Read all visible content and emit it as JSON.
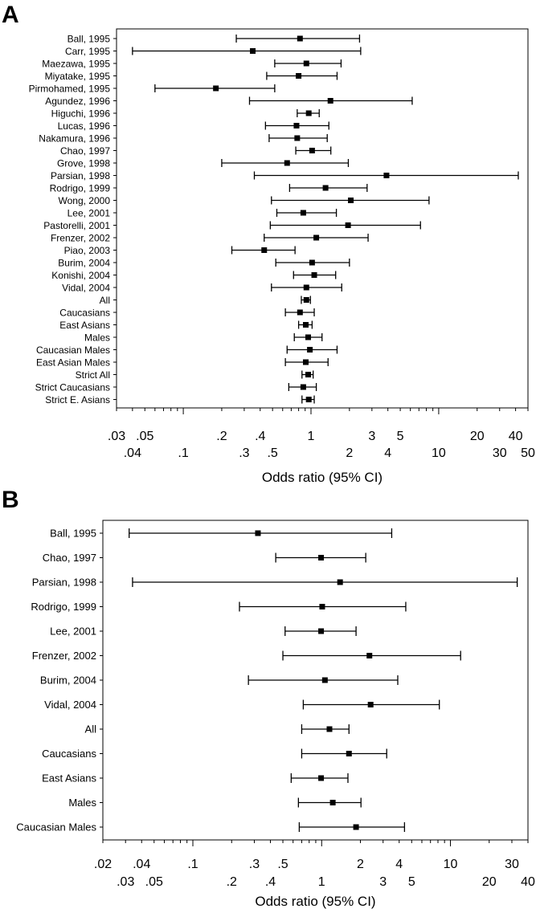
{
  "chart_data": [
    {
      "type": "forest",
      "panel_label": "A",
      "xlabel": "Odds ratio (95% CI)",
      "xscale": "log",
      "xlim": [
        0.03,
        50
      ],
      "grid": false,
      "ticks_top_row": [
        ".03",
        ".05",
        ".2",
        ".4",
        "1",
        "3",
        "5",
        "20",
        "40"
      ],
      "tick_values_top_row": [
        0.03,
        0.05,
        0.2,
        0.4,
        1,
        3,
        5,
        20,
        40
      ],
      "ticks_bottom_row": [
        ".04",
        ".1",
        ".3",
        ".5",
        "2",
        "4",
        "10",
        "30",
        "50"
      ],
      "tick_values_bottom_row": [
        0.04,
        0.1,
        0.3,
        0.5,
        2,
        4,
        10,
        30,
        50
      ],
      "rows": [
        {
          "label": "Ball, 1995",
          "or": 0.82,
          "lo": 0.26,
          "hi": 2.4
        },
        {
          "label": "Carr, 1995",
          "or": 0.35,
          "lo": 0.04,
          "hi": 2.45
        },
        {
          "label": "Maezawa, 1995",
          "or": 0.92,
          "lo": 0.52,
          "hi": 1.72
        },
        {
          "label": "Miyatake, 1995",
          "or": 0.8,
          "lo": 0.45,
          "hi": 1.6
        },
        {
          "label": "Pirmohamed, 1995",
          "or": 0.18,
          "lo": 0.06,
          "hi": 0.52
        },
        {
          "label": "Agundez, 1996",
          "or": 1.42,
          "lo": 0.33,
          "hi": 6.2
        },
        {
          "label": "Higuchi, 1996",
          "or": 0.96,
          "lo": 0.78,
          "hi": 1.16
        },
        {
          "label": "Lucas, 1996",
          "or": 0.77,
          "lo": 0.44,
          "hi": 1.38
        },
        {
          "label": "Nakamura, 1996",
          "or": 0.78,
          "lo": 0.47,
          "hi": 1.34
        },
        {
          "label": "Chao, 1997",
          "or": 1.02,
          "lo": 0.76,
          "hi": 1.43
        },
        {
          "label": "Grove, 1998",
          "or": 0.65,
          "lo": 0.2,
          "hi": 1.96
        },
        {
          "label": "Parsian, 1998",
          "or": 3.9,
          "lo": 0.36,
          "hi": 42
        },
        {
          "label": "Rodrigo, 1999",
          "or": 1.3,
          "lo": 0.68,
          "hi": 2.75
        },
        {
          "label": "Wong, 2000",
          "or": 2.05,
          "lo": 0.49,
          "hi": 8.4
        },
        {
          "label": "Lee, 2001",
          "or": 0.87,
          "lo": 0.54,
          "hi": 1.58
        },
        {
          "label": "Pastorelli, 2001",
          "or": 1.95,
          "lo": 0.48,
          "hi": 7.2
        },
        {
          "label": "Frenzer, 2002",
          "or": 1.1,
          "lo": 0.43,
          "hi": 2.8
        },
        {
          "label": "Piao, 2003",
          "or": 0.43,
          "lo": 0.24,
          "hi": 0.75
        },
        {
          "label": "Burim, 2004",
          "or": 1.02,
          "lo": 0.53,
          "hi": 2.0
        },
        {
          "label": "Konishi, 2004",
          "or": 1.06,
          "lo": 0.73,
          "hi": 1.56
        },
        {
          "label": "Vidal, 2004",
          "or": 0.92,
          "lo": 0.49,
          "hi": 1.74
        },
        {
          "label": "All",
          "or": 0.92,
          "lo": 0.84,
          "hi": 0.99
        },
        {
          "label": "Caucasians",
          "or": 0.82,
          "lo": 0.63,
          "hi": 1.06
        },
        {
          "label": "East Asians",
          "or": 0.91,
          "lo": 0.8,
          "hi": 1.02
        },
        {
          "label": "Males",
          "or": 0.95,
          "lo": 0.74,
          "hi": 1.22
        },
        {
          "label": "Caucasian Males",
          "or": 0.98,
          "lo": 0.65,
          "hi": 1.6
        },
        {
          "label": "East Asian Males",
          "or": 0.91,
          "lo": 0.63,
          "hi": 1.36
        },
        {
          "label": "Strict All",
          "or": 0.95,
          "lo": 0.85,
          "hi": 1.04
        },
        {
          "label": "Strict Caucasians",
          "or": 0.87,
          "lo": 0.67,
          "hi": 1.1
        },
        {
          "label": "Strict E. Asians",
          "or": 0.96,
          "lo": 0.85,
          "hi": 1.06
        }
      ]
    },
    {
      "type": "forest",
      "panel_label": "B",
      "xlabel": "Odds ratio (95% CI)",
      "xscale": "log",
      "xlim": [
        0.02,
        40
      ],
      "grid": false,
      "ticks_top_row": [
        ".02",
        ".04",
        ".1",
        ".3",
        ".5",
        "2",
        "4",
        "10",
        "30"
      ],
      "tick_values_top_row": [
        0.02,
        0.04,
        0.1,
        0.3,
        0.5,
        2,
        4,
        10,
        30
      ],
      "ticks_bottom_row": [
        ".03",
        ".05",
        ".2",
        ".4",
        "1",
        "3",
        "5",
        "20",
        "40"
      ],
      "tick_values_bottom_row": [
        0.03,
        0.05,
        0.2,
        0.4,
        1,
        3,
        5,
        20,
        40
      ],
      "rows": [
        {
          "label": "Ball, 1995",
          "or": 0.32,
          "lo": 0.032,
          "hi": 3.5
        },
        {
          "label": "Chao, 1997",
          "or": 0.99,
          "lo": 0.44,
          "hi": 2.2
        },
        {
          "label": "Parsian, 1998",
          "or": 1.39,
          "lo": 0.034,
          "hi": 33
        },
        {
          "label": "Rodrigo, 1999",
          "or": 1.01,
          "lo": 0.23,
          "hi": 4.5
        },
        {
          "label": "Lee, 2001",
          "or": 0.99,
          "lo": 0.52,
          "hi": 1.85
        },
        {
          "label": "Frenzer, 2002",
          "or": 2.35,
          "lo": 0.5,
          "hi": 12
        },
        {
          "label": "Burim, 2004",
          "or": 1.06,
          "lo": 0.27,
          "hi": 3.9
        },
        {
          "label": "Vidal, 2004",
          "or": 2.4,
          "lo": 0.72,
          "hi": 8.2
        },
        {
          "label": "All",
          "or": 1.15,
          "lo": 0.7,
          "hi": 1.63
        },
        {
          "label": "Caucasians",
          "or": 1.63,
          "lo": 0.7,
          "hi": 3.2
        },
        {
          "label": "East Asians",
          "or": 0.99,
          "lo": 0.58,
          "hi": 1.6
        },
        {
          "label": "Males",
          "or": 1.22,
          "lo": 0.66,
          "hi": 2.02
        },
        {
          "label": "Caucasian Males",
          "or": 1.85,
          "lo": 0.67,
          "hi": 4.4
        }
      ]
    }
  ]
}
